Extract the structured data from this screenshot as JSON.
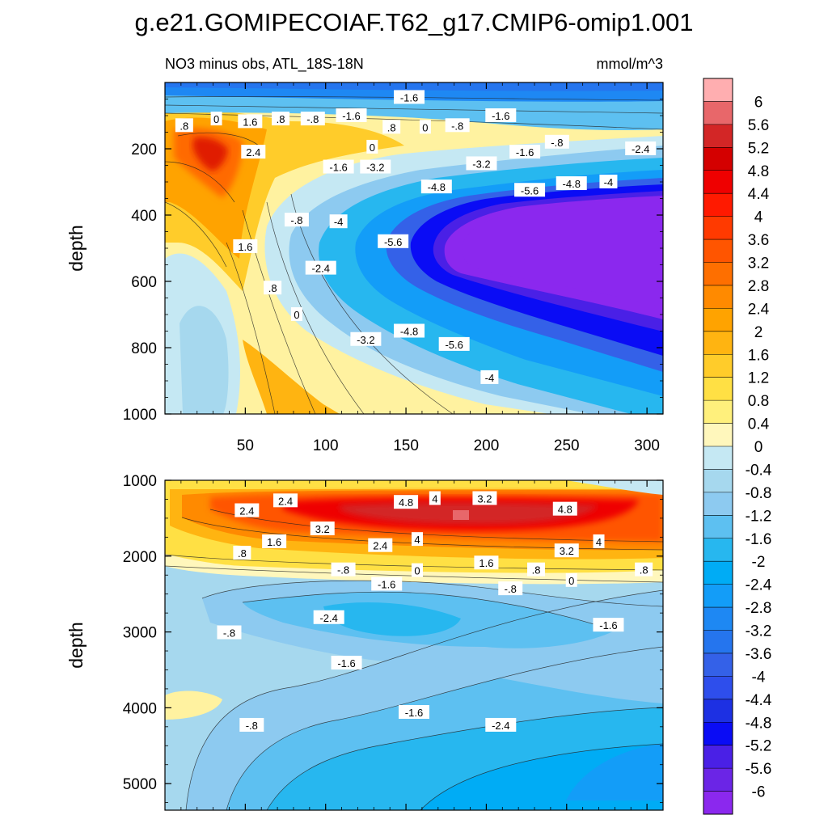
{
  "title": "g.e21.GOMIPECOIAF.T62_g17.CMIP6-omip1.001",
  "chart_data": {
    "type": "heatmap",
    "subtitle": "NO3 minus obs, ATL_18S-18N",
    "units": "mmol/m^3",
    "x_range": [
      0,
      310
    ],
    "x_ticks": [
      50,
      100,
      150,
      200,
      250,
      300
    ],
    "top_panel": {
      "ylabel": "depth",
      "y_range": [
        0,
        1000
      ],
      "y_ticks": [
        200,
        400,
        600,
        800,
        1000
      ],
      "contour_labels": [
        {
          "text": ".8",
          "x": 12,
          "y": 130
        },
        {
          "text": "0",
          "x": 32,
          "y": 110
        },
        {
          "text": "1.6",
          "x": 53,
          "y": 118
        },
        {
          "text": ".8",
          "x": 72,
          "y": 110
        },
        {
          "text": "-.8",
          "x": 92,
          "y": 110
        },
        {
          "text": "-1.6",
          "x": 116,
          "y": 100
        },
        {
          "text": "-1.6",
          "x": 152,
          "y": 45
        },
        {
          "text": "-1.6",
          "x": 209,
          "y": 100
        },
        {
          "text": ".8",
          "x": 141,
          "y": 135
        },
        {
          "text": "0",
          "x": 162,
          "y": 135
        },
        {
          "text": "-.8",
          "x": 182,
          "y": 130
        },
        {
          "text": "2.4",
          "x": 55,
          "y": 210
        },
        {
          "text": "0",
          "x": 129,
          "y": 195
        },
        {
          "text": "-1.6",
          "x": 108,
          "y": 255
        },
        {
          "text": "-3.2",
          "x": 131,
          "y": 255
        },
        {
          "text": "-3.2",
          "x": 197,
          "y": 245
        },
        {
          "text": "-.8",
          "x": 244,
          "y": 180
        },
        {
          "text": "-1.6",
          "x": 224,
          "y": 210
        },
        {
          "text": "-2.4",
          "x": 296,
          "y": 200
        },
        {
          "text": "-4.8",
          "x": 169,
          "y": 315
        },
        {
          "text": "-5.6",
          "x": 227,
          "y": 325
        },
        {
          "text": "-4.8",
          "x": 253,
          "y": 305
        },
        {
          "text": "-4",
          "x": 276,
          "y": 300
        },
        {
          "text": "-.8",
          "x": 82,
          "y": 415
        },
        {
          "text": "-4",
          "x": 108,
          "y": 420
        },
        {
          "text": "-5.6",
          "x": 142,
          "y": 480
        },
        {
          "text": "1.6",
          "x": 50,
          "y": 495
        },
        {
          "text": "-2.4",
          "x": 97,
          "y": 560
        },
        {
          "text": ".8",
          "x": 67,
          "y": 620
        },
        {
          "text": "0",
          "x": 82,
          "y": 700
        },
        {
          "text": "-3.2",
          "x": 125,
          "y": 775
        },
        {
          "text": "-4.8",
          "x": 152,
          "y": 750
        },
        {
          "text": "-5.6",
          "x": 180,
          "y": 790
        },
        {
          "text": "-4",
          "x": 202,
          "y": 890
        }
      ]
    },
    "bottom_panel": {
      "ylabel": "depth",
      "y_range": [
        1000,
        5350
      ],
      "y_ticks": [
        1000,
        2000,
        3000,
        4000,
        5000
      ],
      "contour_labels": [
        {
          "text": "2.4",
          "x": 51,
          "y": 1400
        },
        {
          "text": "2.4",
          "x": 75,
          "y": 1270
        },
        {
          "text": "4.8",
          "x": 150,
          "y": 1290
        },
        {
          "text": "4",
          "x": 168,
          "y": 1240
        },
        {
          "text": "3.2",
          "x": 199,
          "y": 1240
        },
        {
          "text": "4.8",
          "x": 249,
          "y": 1380
        },
        {
          "text": "3.2",
          "x": 98,
          "y": 1640
        },
        {
          "text": "1.6",
          "x": 68,
          "y": 1810
        },
        {
          "text": "2.4",
          "x": 134,
          "y": 1860
        },
        {
          "text": "4",
          "x": 157,
          "y": 1780
        },
        {
          "text": "4",
          "x": 270,
          "y": 1810
        },
        {
          "text": "3.2",
          "x": 250,
          "y": 1930
        },
        {
          "text": ".8",
          "x": 48,
          "y": 1960
        },
        {
          "text": "1.6",
          "x": 200,
          "y": 2090
        },
        {
          "text": ".8",
          "x": 231,
          "y": 2180
        },
        {
          "text": ".8",
          "x": 298,
          "y": 2180
        },
        {
          "text": "-.8",
          "x": 111,
          "y": 2180
        },
        {
          "text": "0",
          "x": 157,
          "y": 2190
        },
        {
          "text": "0",
          "x": 253,
          "y": 2320
        },
        {
          "text": "-1.6",
          "x": 138,
          "y": 2370
        },
        {
          "text": "-.8",
          "x": 215,
          "y": 2430
        },
        {
          "text": "-2.4",
          "x": 102,
          "y": 2810
        },
        {
          "text": "-1.6",
          "x": 276,
          "y": 2910
        },
        {
          "text": "-.8",
          "x": 40,
          "y": 3010
        },
        {
          "text": "-1.6",
          "x": 113,
          "y": 3410
        },
        {
          "text": "-1.6",
          "x": 155,
          "y": 4060
        },
        {
          "text": "-.8",
          "x": 54,
          "y": 4230
        },
        {
          "text": "-2.4",
          "x": 209,
          "y": 4230
        }
      ]
    },
    "colorbar": {
      "labels": [
        "6",
        "5.6",
        "5.2",
        "4.8",
        "4.4",
        "4",
        "3.6",
        "3.2",
        "2.8",
        "2.4",
        "2",
        "1.6",
        "1.2",
        "0.8",
        "0.4",
        "0",
        "-0.4",
        "-0.8",
        "-1.2",
        "-1.6",
        "-2",
        "-2.4",
        "-2.8",
        "-3.2",
        "-3.6",
        "-4",
        "-4.4",
        "-4.8",
        "-5.2",
        "-5.6",
        "-6"
      ],
      "colors": [
        "#ffaeb0",
        "#e8676a",
        "#d32626",
        "#d40000",
        "#ef0000",
        "#ff1a00",
        "#ff3a00",
        "#ff5500",
        "#fe6f00",
        "#ff8a00",
        "#ffa300",
        "#ffb411",
        "#ffcc2a",
        "#ffe044",
        "#fff07c",
        "#fff7bc",
        "#c5e8f3",
        "#a6d8ee",
        "#8dcaf0",
        "#5dc0f1",
        "#27b7ef",
        "#00acf5",
        "#139df8",
        "#1e88f3",
        "#2575ee",
        "#3461e8",
        "#2e4eec",
        "#1d30e3",
        "#0a0cf5",
        "#4a20e6",
        "#6b25e6",
        "#8b28ee"
      ]
    }
  }
}
